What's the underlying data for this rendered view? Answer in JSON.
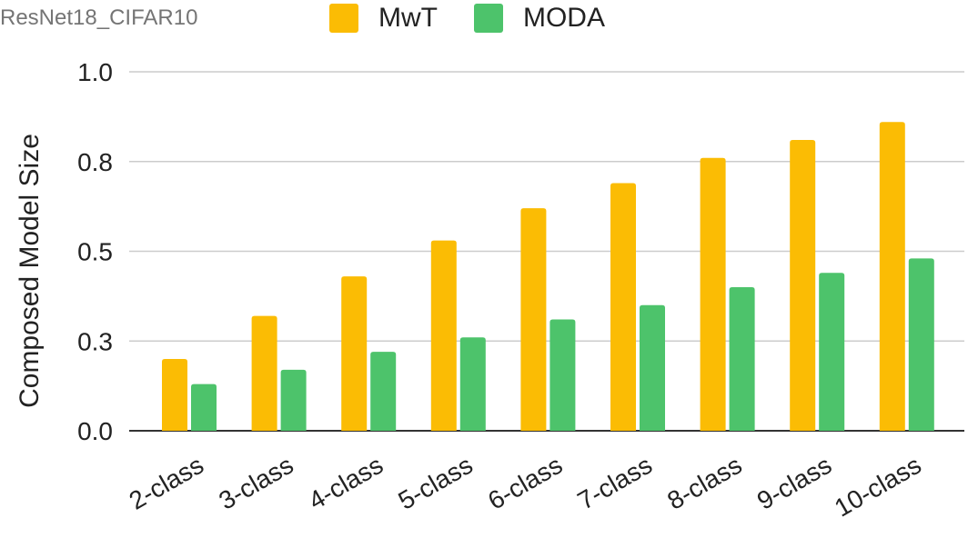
{
  "chart_data": {
    "type": "bar",
    "subtitle": "ResNet18_CIFAR10",
    "categories": [
      "2-class",
      "3-class",
      "4-class",
      "5-class",
      "6-class",
      "7-class",
      "8-class",
      "9-class",
      "10-class"
    ],
    "series": [
      {
        "name": "MwT",
        "color": "#FBBC04",
        "values": [
          0.2,
          0.32,
          0.43,
          0.53,
          0.62,
          0.69,
          0.76,
          0.81,
          0.86
        ]
      },
      {
        "name": "MODA",
        "color": "#4DC36B",
        "values": [
          0.13,
          0.17,
          0.22,
          0.26,
          0.31,
          0.35,
          0.4,
          0.44,
          0.48
        ]
      }
    ],
    "ylabel": "Composed Model Size",
    "yticks": [
      "0.0",
      "0.3",
      "0.5",
      "0.8",
      "1.0"
    ],
    "ylim": [
      0,
      1.0
    ],
    "grid": true,
    "legend_position": "top"
  }
}
